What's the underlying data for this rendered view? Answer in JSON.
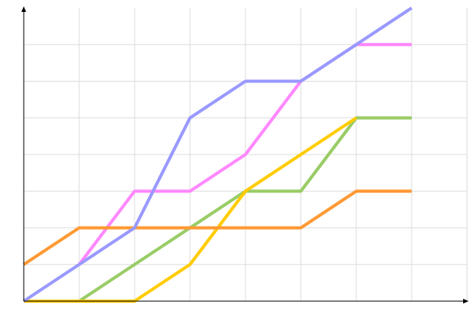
{
  "chart_data": {
    "type": "line",
    "title": "",
    "xlabel": "",
    "ylabel": "",
    "x": [
      0,
      1,
      2,
      3,
      4,
      5,
      6,
      7
    ],
    "xlim": [
      0,
      8
    ],
    "ylim": [
      0,
      8
    ],
    "grid": true,
    "legend": "none",
    "series": [
      {
        "color": "#ff88ff",
        "values": [
          null,
          1,
          3,
          3,
          4,
          6,
          7,
          7
        ]
      },
      {
        "color": "#99cc66",
        "values": [
          0,
          0,
          1,
          2,
          3,
          3,
          5,
          5
        ]
      },
      {
        "color": "#ffcc00",
        "values": [
          0,
          0,
          0,
          1,
          3,
          4,
          5,
          null
        ]
      },
      {
        "color": "#ff9933",
        "values": [
          1,
          2,
          2,
          2,
          2,
          2,
          3,
          3
        ]
      },
      {
        "color": "#9999ff",
        "values": [
          0,
          1,
          2,
          5,
          6,
          6,
          7,
          8
        ]
      }
    ]
  }
}
